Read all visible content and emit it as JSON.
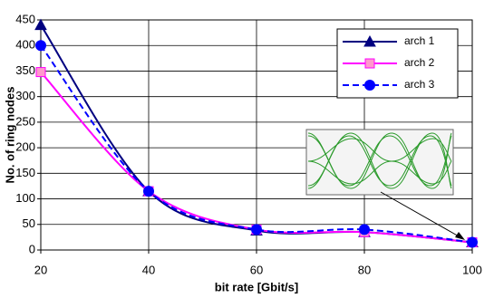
{
  "chart_data": {
    "type": "line",
    "x_label": "bit rate [Gbit/s]",
    "y_label": "No. of ring nodes",
    "x": [
      20,
      40,
      60,
      80,
      100
    ],
    "xlim": [
      20,
      100
    ],
    "xticks": [
      20,
      40,
      60,
      80,
      100
    ],
    "ylim": [
      0,
      450
    ],
    "yticks": [
      0,
      50,
      100,
      150,
      200,
      250,
      300,
      350,
      400,
      450
    ],
    "grid": true,
    "legend": "upper right",
    "series": [
      {
        "name": "arch 1",
        "color": "#000080",
        "marker": "triangle",
        "dash": false,
        "values": [
          440,
          115,
          38,
          35,
          15
        ]
      },
      {
        "name": "arch 2",
        "color": "#ff00ff",
        "marker": "square",
        "dash": false,
        "values": [
          348,
          115,
          40,
          35,
          15
        ]
      },
      {
        "name": "arch 3",
        "color": "#0000ff",
        "marker": "circle",
        "dash": true,
        "values": [
          400,
          115,
          40,
          40,
          15
        ]
      }
    ]
  }
}
